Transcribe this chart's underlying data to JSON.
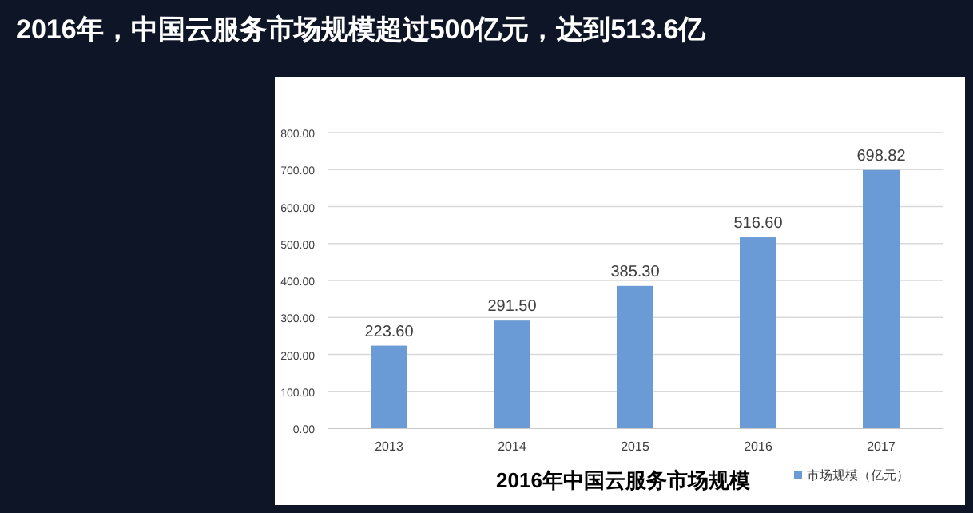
{
  "chart_data": {
    "type": "bar",
    "title": "2016年，中国云服务市场规模超过500亿元，达到513.6亿",
    "subtitle": "2016年中国云服务市场规模",
    "categories": [
      "2013",
      "2014",
      "2015",
      "2016",
      "2017"
    ],
    "series": [
      {
        "name": "市场规模（亿元）",
        "color": "#6a9bd6",
        "values": [
          223.6,
          291.5,
          385.3,
          516.6,
          698.82
        ],
        "value_labels": [
          "223.60",
          "291.50",
          "385.30",
          "516.60",
          "698.82"
        ]
      }
    ],
    "ylim": [
      0,
      800
    ],
    "yticks": [
      {
        "value": 0,
        "label": "0.00"
      },
      {
        "value": 100,
        "label": "100.00"
      },
      {
        "value": 200,
        "label": "200.00"
      },
      {
        "value": 300,
        "label": "300.00"
      },
      {
        "value": 400,
        "label": "400.00"
      },
      {
        "value": 500,
        "label": "500.00"
      },
      {
        "value": 600,
        "label": "600.00"
      },
      {
        "value": 700,
        "label": "700.00"
      },
      {
        "value": 800,
        "label": "800.00"
      }
    ],
    "grid": "y",
    "legend": "bottom right"
  }
}
